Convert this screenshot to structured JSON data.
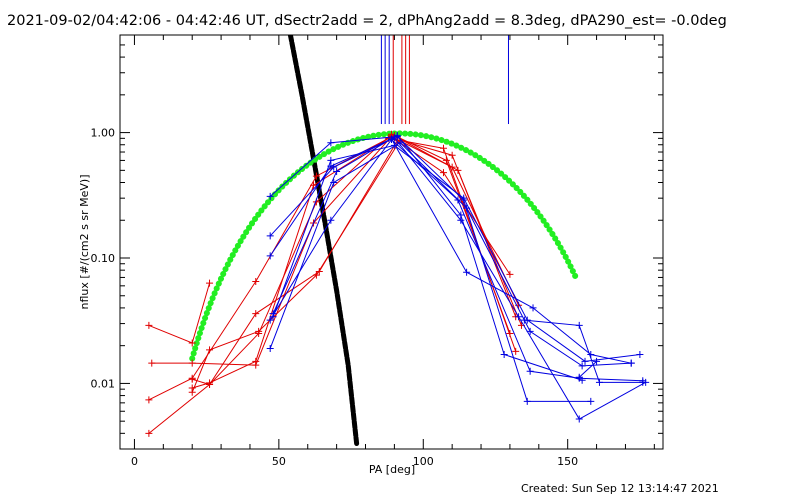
{
  "title": "2021-09-02/04:42:06 - 04:42:46 UT, dSectr2add = 2, dPhAng2add = 8.3deg, dPA290_est= -0.0deg",
  "footer": "Created: Sun Sep 12 13:14:47 2021",
  "chart_data": {
    "type": "line",
    "xlabel": "PA [deg]",
    "ylabel": "nflux [#/(cm2 s sr MeV)]",
    "xlim": [
      -5,
      183
    ],
    "ylim": [
      0.003,
      6
    ],
    "yscale": "log",
    "grid": false,
    "x_ticks": [
      0,
      50,
      100,
      150
    ],
    "x_tick_labels": [
      "0",
      "50",
      "100",
      "150"
    ],
    "y_ticks": [
      0.01,
      0.1,
      1.0
    ],
    "y_tick_labels": [
      "0.01",
      "0.10",
      "1.00"
    ],
    "colors": {
      "red": "#e00000",
      "blue": "#0000e0",
      "green": "#22ee22",
      "black": "#000000"
    },
    "red_series": [
      {
        "x": [
          5,
          20,
          26
        ],
        "y": [
          0.029,
          0.021,
          0.063
        ]
      },
      {
        "x": [
          5,
          20,
          42,
          63,
          90,
          108,
          130
        ],
        "y": [
          0.0074,
          0.011,
          0.065,
          0.45,
          0.95,
          0.6,
          0.025
        ]
      },
      {
        "x": [
          5,
          26,
          42,
          64,
          91,
          107,
          130
        ],
        "y": [
          0.004,
          0.0098,
          0.036,
          0.078,
          0.86,
          0.48,
          0.074
        ]
      },
      {
        "x": [
          6,
          20,
          42,
          62,
          89,
          110,
          133
        ],
        "y": [
          0.0145,
          0.0145,
          0.014,
          0.19,
          0.93,
          0.53,
          0.042
        ]
      },
      {
        "x": [
          20,
          26,
          42,
          62,
          88,
          107,
          132
        ],
        "y": [
          0.0092,
          0.0101,
          0.015,
          0.38,
          0.9,
          0.75,
          0.018
        ]
      },
      {
        "x": [
          20,
          26,
          43,
          63,
          92,
          110,
          132
        ],
        "y": [
          0.0085,
          0.0185,
          0.026,
          0.073,
          0.87,
          0.66,
          0.034
        ]
      },
      {
        "x": [
          20,
          26,
          43,
          63,
          89,
          112,
          134
        ],
        "y": [
          0.0108,
          0.0098,
          0.025,
          0.28,
          0.97,
          0.5,
          0.029
        ]
      }
    ],
    "blue_series": [
      {
        "x": [
          47,
          68,
          91,
          114,
          136,
          158
        ],
        "y": [
          0.31,
          0.83,
          0.93,
          0.29,
          0.0072,
          0.0072
        ]
      },
      {
        "x": [
          47,
          69,
          90,
          113,
          133,
          154,
          177
        ],
        "y": [
          0.15,
          0.53,
          0.91,
          0.2,
          0.034,
          0.0052,
          0.0102
        ]
      },
      {
        "x": [
          47,
          68,
          89,
          115,
          138,
          158,
          172
        ],
        "y": [
          0.104,
          0.54,
          0.89,
          0.077,
          0.04,
          0.017,
          0.0145
        ]
      },
      {
        "x": [
          48,
          70,
          91,
          113,
          128,
          155
        ],
        "y": [
          0.036,
          0.49,
          0.95,
          0.22,
          0.017,
          0.0106
        ]
      },
      {
        "x": [
          47,
          69,
          92,
          115,
          137,
          155,
          172
        ],
        "y": [
          0.019,
          0.4,
          0.83,
          0.25,
          0.026,
          0.0138,
          0.0145
        ]
      },
      {
        "x": [
          48,
          68,
          90,
          114,
          136,
          156,
          175
        ],
        "y": [
          0.034,
          0.6,
          0.79,
          0.3,
          0.032,
          0.015,
          0.017
        ]
      },
      {
        "x": [
          47,
          68,
          89,
          112,
          137,
          154,
          176
        ],
        "y": [
          0.032,
          0.2,
          0.88,
          0.29,
          0.0125,
          0.011,
          0.0105
        ]
      },
      {
        "x": [
          135,
          154,
          161,
          176
        ],
        "y": [
          0.032,
          0.029,
          0.0102,
          0.0102
        ]
      },
      {
        "x": [
          154,
          160
        ],
        "y": [
          0.0112,
          0.015
        ]
      }
    ],
    "green_fit": {
      "amplitude": 0.985,
      "center": 91.5,
      "exponent": 3.6
    },
    "black_curve": {
      "x": [
        54,
        58,
        62,
        66,
        70,
        74,
        77
      ],
      "y": [
        6.0,
        2.0,
        0.62,
        0.19,
        0.055,
        0.014,
        0.0032
      ]
    },
    "vertical_marks": [
      {
        "x": 85.5,
        "color": "blue",
        "y_from": 1.17,
        "y_to": 6
      },
      {
        "x": 86.8,
        "color": "blue",
        "y_from": 1.17,
        "y_to": 6
      },
      {
        "x": 88.2,
        "color": "blue",
        "y_from": 1.17,
        "y_to": 6
      },
      {
        "x": 89.6,
        "color": "red",
        "y_from": 1.17,
        "y_to": 6
      },
      {
        "x": 92.6,
        "color": "red",
        "y_from": 1.17,
        "y_to": 6
      },
      {
        "x": 93.9,
        "color": "red",
        "y_from": 1.17,
        "y_to": 6
      },
      {
        "x": 95.2,
        "color": "red",
        "y_from": 1.17,
        "y_to": 6
      },
      {
        "x": 129.5,
        "color": "blue",
        "y_from": 1.17,
        "y_to": 6
      }
    ]
  }
}
